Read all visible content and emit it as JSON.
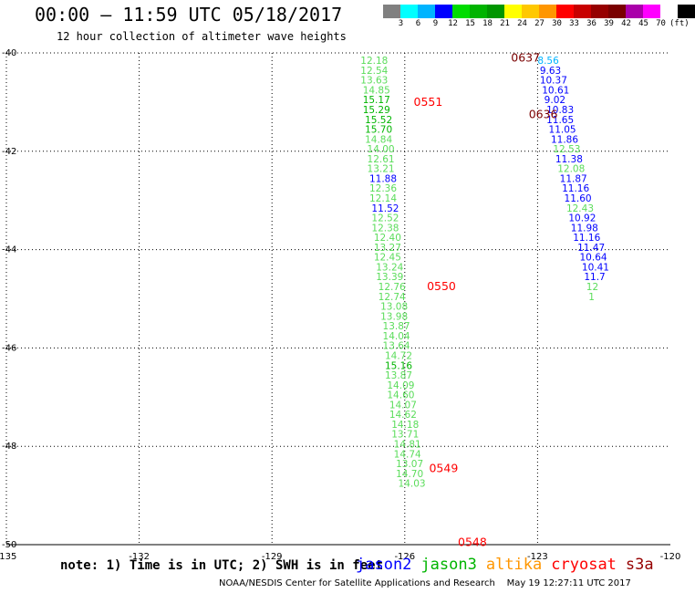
{
  "title": "00:00 – 11:59 UTC 05/18/2017",
  "subtitle": "12 hour collection of altimeter wave heights",
  "legend": {
    "colors": [
      "#808080",
      "#00ffff",
      "#00b4ff",
      "#0000ff",
      "#00dc00",
      "#00b400",
      "#009600",
      "#ffff00",
      "#ffc800",
      "#ff9600",
      "#ff0000",
      "#c80000",
      "#960000",
      "#7a0000",
      "#aa00aa",
      "#ff00ff",
      "#ffffff",
      "#000000"
    ],
    "labels": [
      "3",
      "6",
      "9",
      "12",
      "15",
      "18",
      "21",
      "24",
      "27",
      "30",
      "33",
      "36",
      "39",
      "42",
      "45",
      "70",
      "(ft)"
    ]
  },
  "note": "note: 1) Time is in UTC; 2) SWH is in feet",
  "satellites": [
    {
      "name": "jason2",
      "color": "#0000ff"
    },
    {
      "name": "jason3",
      "color": "#00b400"
    },
    {
      "name": "altika",
      "color": "#ff9600"
    },
    {
      "name": "cryosat",
      "color": "#ff0000"
    },
    {
      "name": "s3a",
      "color": "#960000"
    }
  ],
  "credit": "NOAA/NESDIS Center for Satellite Applications and Research",
  "timestamp": "May 19 12:27:11 UTC 2017",
  "chart_data": {
    "type": "scatter",
    "x_ticks": [
      "-135",
      "-132",
      "-129",
      "-126",
      "-123",
      "-120"
    ],
    "y_ticks": [
      "-40",
      "-42",
      "-44",
      "-46",
      "-48",
      "-50"
    ],
    "xlim": [
      -135,
      -120
    ],
    "ylim": [
      -50,
      -40
    ],
    "grid": true,
    "time_labels": [
      {
        "text": "0637",
        "lon": -123.6,
        "lat": -40.1,
        "color": "#7a0000"
      },
      {
        "text": "0551",
        "lon": -125.8,
        "lat": -41.0,
        "color": "#ff0000"
      },
      {
        "text": "0636",
        "lon": -123.2,
        "lat": -41.25,
        "color": "#7a0000"
      },
      {
        "text": "0550",
        "lon": -125.5,
        "lat": -44.75,
        "color": "#ff0000"
      },
      {
        "text": "0549",
        "lon": -125.45,
        "lat": -48.45,
        "color": "#ff0000"
      },
      {
        "text": "0548",
        "lon": -124.8,
        "lat": -49.95,
        "color": "#ff0000"
      }
    ],
    "series": [
      {
        "name": "jason3",
        "points": [
          {
            "lon": -127.0,
            "lat": -40.15,
            "v": "12.18",
            "c": "#5adc5a"
          },
          {
            "lon": -127.0,
            "lat": -40.35,
            "v": "12.54",
            "c": "#5adc5a"
          },
          {
            "lon": -127.0,
            "lat": -40.55,
            "v": "13.63",
            "c": "#5adc5a"
          },
          {
            "lon": -126.95,
            "lat": -40.75,
            "v": "14.85",
            "c": "#5adc5a"
          },
          {
            "lon": -126.95,
            "lat": -40.95,
            "v": "15.17",
            "c": "#00b400"
          },
          {
            "lon": -126.95,
            "lat": -41.15,
            "v": "15.29",
            "c": "#00b400"
          },
          {
            "lon": -126.9,
            "lat": -41.35,
            "v": "15.52",
            "c": "#00b400"
          },
          {
            "lon": -126.9,
            "lat": -41.55,
            "v": "15.70",
            "c": "#00b400"
          },
          {
            "lon": -126.9,
            "lat": -41.75,
            "v": "14.84",
            "c": "#5adc5a"
          },
          {
            "lon": -126.85,
            "lat": -41.95,
            "v": "14.00",
            "c": "#5adc5a"
          },
          {
            "lon": -126.85,
            "lat": -42.15,
            "v": "12.61",
            "c": "#5adc5a"
          },
          {
            "lon": -126.85,
            "lat": -42.35,
            "v": "13.21",
            "c": "#5adc5a"
          },
          {
            "lon": -126.8,
            "lat": -42.55,
            "v": "11.88",
            "c": "#0000ff"
          },
          {
            "lon": -126.8,
            "lat": -42.75,
            "v": "12.36",
            "c": "#5adc5a"
          },
          {
            "lon": -126.8,
            "lat": -42.95,
            "v": "12.14",
            "c": "#5adc5a"
          },
          {
            "lon": -126.75,
            "lat": -43.15,
            "v": "11.52",
            "c": "#0000ff"
          },
          {
            "lon": -126.75,
            "lat": -43.35,
            "v": "12.52",
            "c": "#5adc5a"
          },
          {
            "lon": -126.75,
            "lat": -43.55,
            "v": "12.38",
            "c": "#5adc5a"
          },
          {
            "lon": -126.7,
            "lat": -43.75,
            "v": "12.40",
            "c": "#5adc5a"
          },
          {
            "lon": -126.7,
            "lat": -43.95,
            "v": "13.27",
            "c": "#5adc5a"
          },
          {
            "lon": -126.7,
            "lat": -44.15,
            "v": "12.45",
            "c": "#5adc5a"
          },
          {
            "lon": -126.65,
            "lat": -44.35,
            "v": "13.24",
            "c": "#5adc5a"
          },
          {
            "lon": -126.65,
            "lat": -44.55,
            "v": "13.39",
            "c": "#5adc5a"
          },
          {
            "lon": -126.6,
            "lat": -44.75,
            "v": "12.76",
            "c": "#5adc5a"
          },
          {
            "lon": -126.6,
            "lat": -44.95,
            "v": "12.74",
            "c": "#5adc5a"
          },
          {
            "lon": -126.55,
            "lat": -45.15,
            "v": "13.08",
            "c": "#5adc5a"
          },
          {
            "lon": -126.55,
            "lat": -45.35,
            "v": "13.98",
            "c": "#5adc5a"
          },
          {
            "lon": -126.5,
            "lat": -45.55,
            "v": "13.87",
            "c": "#5adc5a"
          },
          {
            "lon": -126.5,
            "lat": -45.75,
            "v": "14.04",
            "c": "#5adc5a"
          },
          {
            "lon": -126.5,
            "lat": -45.95,
            "v": "13.64",
            "c": "#5adc5a"
          },
          {
            "lon": -126.45,
            "lat": -46.15,
            "v": "14.72",
            "c": "#5adc5a"
          },
          {
            "lon": -126.45,
            "lat": -46.35,
            "v": "15.16",
            "c": "#00b400"
          },
          {
            "lon": -126.45,
            "lat": -46.55,
            "v": "13.87",
            "c": "#5adc5a"
          },
          {
            "lon": -126.4,
            "lat": -46.75,
            "v": "14.09",
            "c": "#5adc5a"
          },
          {
            "lon": -126.4,
            "lat": -46.95,
            "v": "14.60",
            "c": "#5adc5a"
          },
          {
            "lon": -126.35,
            "lat": -47.15,
            "v": "14.07",
            "c": "#5adc5a"
          },
          {
            "lon": -126.35,
            "lat": -47.35,
            "v": "14.62",
            "c": "#5adc5a"
          },
          {
            "lon": -126.3,
            "lat": -47.55,
            "v": "14.18",
            "c": "#5adc5a"
          },
          {
            "lon": -126.3,
            "lat": -47.75,
            "v": "13.71",
            "c": "#5adc5a"
          },
          {
            "lon": -126.25,
            "lat": -47.95,
            "v": "14.81",
            "c": "#5adc5a"
          },
          {
            "lon": -126.25,
            "lat": -48.15,
            "v": "14.74",
            "c": "#5adc5a"
          },
          {
            "lon": -126.2,
            "lat": -48.35,
            "v": "13.07",
            "c": "#5adc5a"
          },
          {
            "lon": -126.2,
            "lat": -48.55,
            "v": "14.70",
            "c": "#5adc5a"
          },
          {
            "lon": -126.15,
            "lat": -48.75,
            "v": "14.03",
            "c": "#5adc5a"
          }
        ]
      },
      {
        "name": "s3a",
        "points": [
          {
            "lon": -123.0,
            "lat": -40.15,
            "v": "8.56",
            "c": "#00b4ff"
          },
          {
            "lon": -122.95,
            "lat": -40.35,
            "v": "9.63",
            "c": "#0000ff"
          },
          {
            "lon": -122.95,
            "lat": -40.55,
            "v": "10.37",
            "c": "#0000ff"
          },
          {
            "lon": -122.9,
            "lat": -40.75,
            "v": "10.61",
            "c": "#0000ff"
          },
          {
            "lon": -122.85,
            "lat": -40.95,
            "v": "9.02",
            "c": "#0000ff"
          },
          {
            "lon": -122.8,
            "lat": -41.15,
            "v": "10.83",
            "c": "#0000ff"
          },
          {
            "lon": -122.8,
            "lat": -41.35,
            "v": "11.65",
            "c": "#0000ff"
          },
          {
            "lon": -122.75,
            "lat": -41.55,
            "v": "11.05",
            "c": "#0000ff"
          },
          {
            "lon": -122.7,
            "lat": -41.75,
            "v": "11.86",
            "c": "#0000ff"
          },
          {
            "lon": -122.65,
            "lat": -41.95,
            "v": "12.53",
            "c": "#5adc5a"
          },
          {
            "lon": -122.6,
            "lat": -42.15,
            "v": "11.38",
            "c": "#0000ff"
          },
          {
            "lon": -122.55,
            "lat": -42.35,
            "v": "12.08",
            "c": "#5adc5a"
          },
          {
            "lon": -122.5,
            "lat": -42.55,
            "v": "11.87",
            "c": "#0000ff"
          },
          {
            "lon": -122.45,
            "lat": -42.75,
            "v": "11.16",
            "c": "#0000ff"
          },
          {
            "lon": -122.4,
            "lat": -42.95,
            "v": "11.60",
            "c": "#0000ff"
          },
          {
            "lon": -122.35,
            "lat": -43.15,
            "v": "12.43",
            "c": "#5adc5a"
          },
          {
            "lon": -122.3,
            "lat": -43.35,
            "v": "10.92",
            "c": "#0000ff"
          },
          {
            "lon": -122.25,
            "lat": -43.55,
            "v": "11.98",
            "c": "#0000ff"
          },
          {
            "lon": -122.2,
            "lat": -43.75,
            "v": "11.16",
            "c": "#0000ff"
          },
          {
            "lon": -122.1,
            "lat": -43.95,
            "v": "11.47",
            "c": "#0000ff"
          },
          {
            "lon": -122.05,
            "lat": -44.15,
            "v": "10.64",
            "c": "#0000ff"
          },
          {
            "lon": -122.0,
            "lat": -44.35,
            "v": "10.41",
            "c": "#0000ff"
          },
          {
            "lon": -121.95,
            "lat": -44.55,
            "v": "11.7",
            "c": "#0000ff"
          },
          {
            "lon": -121.9,
            "lat": -44.75,
            "v": "12",
            "c": "#5adc5a"
          },
          {
            "lon": -121.85,
            "lat": -44.95,
            "v": "1",
            "c": "#5adc5a"
          }
        ]
      }
    ]
  }
}
